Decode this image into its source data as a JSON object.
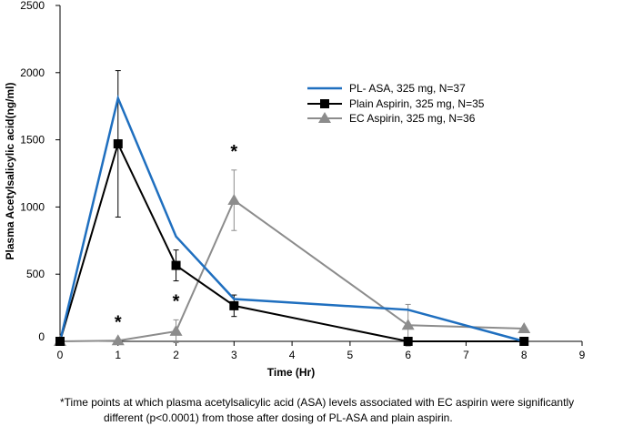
{
  "chart_data": {
    "type": "line",
    "title": "",
    "xlabel": "Time (Hr)",
    "ylabel": "Plasma Acetylsalicylic acid(ng/ml)",
    "xlim": [
      0,
      9
    ],
    "ylim": [
      0,
      2500
    ],
    "x_ticks": [
      "0",
      "1",
      "2",
      "3",
      "4",
      "5",
      "6",
      "7",
      "8",
      "9"
    ],
    "y_ticks": [
      "0",
      "500",
      "1000",
      "1500",
      "2000",
      "2500"
    ],
    "legend_position": "top-right",
    "series": [
      {
        "name": "PL- ASA, 325 mg, N=37",
        "color": "#1f6fbf",
        "marker": "none",
        "x": [
          0,
          1,
          2,
          3,
          6,
          8
        ],
        "y": [
          0,
          1810,
          780,
          315,
          235,
          0
        ],
        "error": [
          0,
          0,
          0,
          0,
          0,
          0
        ]
      },
      {
        "name": "Plain Aspirin, 325 mg, N=35",
        "color": "#000000",
        "marker": "square",
        "x": [
          0,
          1,
          2,
          3,
          6,
          8
        ],
        "y": [
          0,
          1470,
          565,
          265,
          0,
          0
        ],
        "error": [
          0,
          545,
          115,
          80,
          0,
          0
        ]
      },
      {
        "name": "EC Aspirin, 325 mg, N=36",
        "color": "#8c8c8c",
        "marker": "triangle",
        "x": [
          0,
          1,
          2,
          3,
          6,
          8
        ],
        "y": [
          0,
          5,
          75,
          1050,
          120,
          95
        ],
        "error": [
          0,
          0,
          85,
          225,
          155,
          0
        ]
      }
    ],
    "annotations": [
      {
        "text": "*",
        "x": 1
      },
      {
        "text": "*",
        "x": 2
      },
      {
        "text": "*",
        "x": 3
      }
    ]
  },
  "footnote": {
    "line1": "*Time points at which plasma acetylsalicylic acid (ASA) levels associated with EC aspirin were  significantly",
    "line2": "different (p<0.0001) from those after dosing of PL-ASA and plain aspirin."
  }
}
